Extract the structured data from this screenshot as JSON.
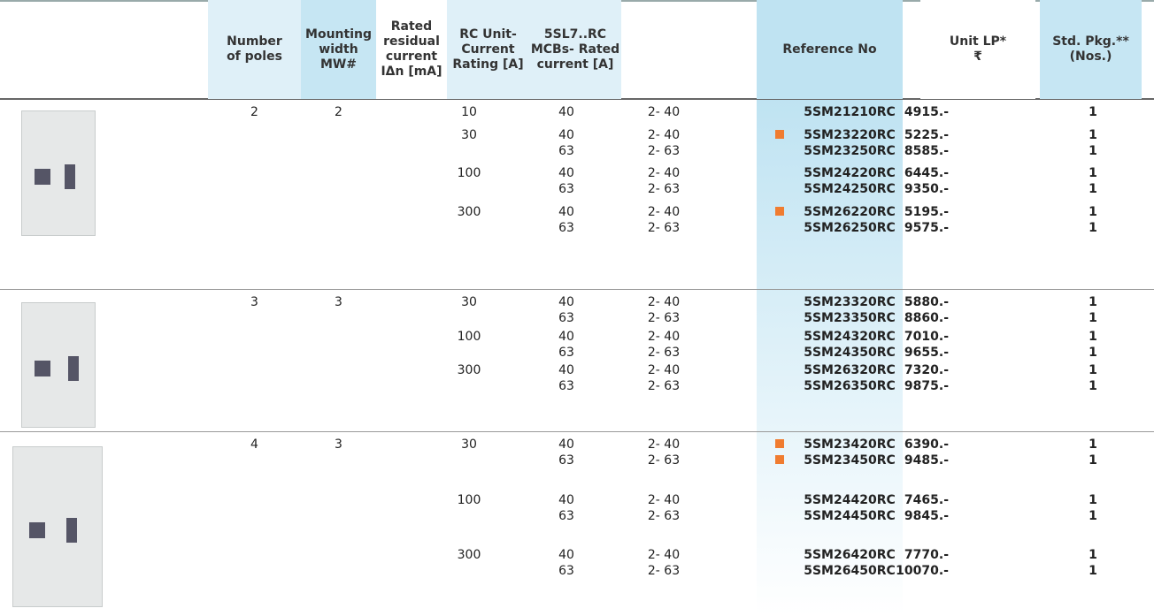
{
  "header": {
    "columns": [
      "Number\nof poles",
      "Mounting\nwidth\nMW#",
      "Rated\nresidual\ncurrent\nIΔn [mA]",
      "RC Unit-\nCurrent\nRating [A]",
      "5SL7..RC\nMCBs- Rated\ncurrent [A]",
      "Reference No",
      "Unit LP*\n₹",
      "Std. Pkg.**\n(Nos.)"
    ]
  },
  "groups": [
    {
      "poles": "2",
      "mounting_width": "2",
      "subgroups": [
        {
          "residual": "10",
          "rows": [
            {
              "rc": "40",
              "mcb": "2- 40",
              "ref": "5SM21210RC",
              "lp": "4915.-",
              "pkg": "1",
              "marker": false
            }
          ]
        },
        {
          "residual": "30",
          "rows": [
            {
              "rc": "40",
              "mcb": "2- 40",
              "ref": "5SM23220RC",
              "lp": "5225.-",
              "pkg": "1",
              "marker": true
            },
            {
              "rc": "63",
              "mcb": "2- 63",
              "ref": "5SM23250RC",
              "lp": "8585.-",
              "pkg": "1",
              "marker": false
            }
          ]
        },
        {
          "residual": "100",
          "rows": [
            {
              "rc": "40",
              "mcb": "2- 40",
              "ref": "5SM24220RC",
              "lp": "6445.-",
              "pkg": "1",
              "marker": false
            },
            {
              "rc": "63",
              "mcb": "2- 63",
              "ref": "5SM24250RC",
              "lp": "9350.-",
              "pkg": "1",
              "marker": false
            }
          ]
        },
        {
          "residual": "300",
          "rows": [
            {
              "rc": "40",
              "mcb": "2- 40",
              "ref": "5SM26220RC",
              "lp": "5195.-",
              "pkg": "1",
              "marker": true
            },
            {
              "rc": "63",
              "mcb": "2- 63",
              "ref": "5SM26250RC",
              "lp": "9575.-",
              "pkg": "1",
              "marker": false
            }
          ]
        }
      ]
    },
    {
      "poles": "3",
      "mounting_width": "3",
      "subgroups": [
        {
          "residual": "30",
          "rows": [
            {
              "rc": "40",
              "mcb": "2- 40",
              "ref": "5SM23320RC",
              "lp": "5880.-",
              "pkg": "1",
              "marker": false
            },
            {
              "rc": "63",
              "mcb": "2- 63",
              "ref": "5SM23350RC",
              "lp": "8860.-",
              "pkg": "1",
              "marker": false
            }
          ]
        },
        {
          "residual": "100",
          "rows": [
            {
              "rc": "40",
              "mcb": "2- 40",
              "ref": "5SM24320RC",
              "lp": "7010.-",
              "pkg": "1",
              "marker": false
            },
            {
              "rc": "63",
              "mcb": "2- 63",
              "ref": "5SM24350RC",
              "lp": "9655.-",
              "pkg": "1",
              "marker": false
            }
          ]
        },
        {
          "residual": "300",
          "rows": [
            {
              "rc": "40",
              "mcb": "2- 40",
              "ref": "5SM26320RC",
              "lp": "7320.-",
              "pkg": "1",
              "marker": false
            },
            {
              "rc": "63",
              "mcb": "2- 63",
              "ref": "5SM26350RC",
              "lp": "9875.-",
              "pkg": "1",
              "marker": false
            }
          ]
        }
      ]
    },
    {
      "poles": "4",
      "mounting_width": "3",
      "subgroups": [
        {
          "residual": "30",
          "rows": [
            {
              "rc": "40",
              "mcb": "2- 40",
              "ref": "5SM23420RC",
              "lp": "6390.-",
              "pkg": "1",
              "marker": true
            },
            {
              "rc": "63",
              "mcb": "2- 63",
              "ref": "5SM23450RC",
              "lp": "9485.-",
              "pkg": "1",
              "marker": true
            }
          ]
        },
        {
          "residual": "100",
          "rows": [
            {
              "rc": "40",
              "mcb": "2- 40",
              "ref": "5SM24420RC",
              "lp": "7465.-",
              "pkg": "1",
              "marker": false
            },
            {
              "rc": "63",
              "mcb": "2- 63",
              "ref": "5SM24450RC",
              "lp": "9845.-",
              "pkg": "1",
              "marker": false
            }
          ]
        },
        {
          "residual": "300",
          "rows": [
            {
              "rc": "40",
              "mcb": "2- 40",
              "ref": "5SM26420RC",
              "lp": "7770.-",
              "pkg": "1",
              "marker": false
            },
            {
              "rc": "63",
              "mcb": "2- 63",
              "ref": "5SM26450RC",
              "lp": "10070.-",
              "pkg": "1",
              "marker": false
            }
          ]
        }
      ]
    }
  ]
}
